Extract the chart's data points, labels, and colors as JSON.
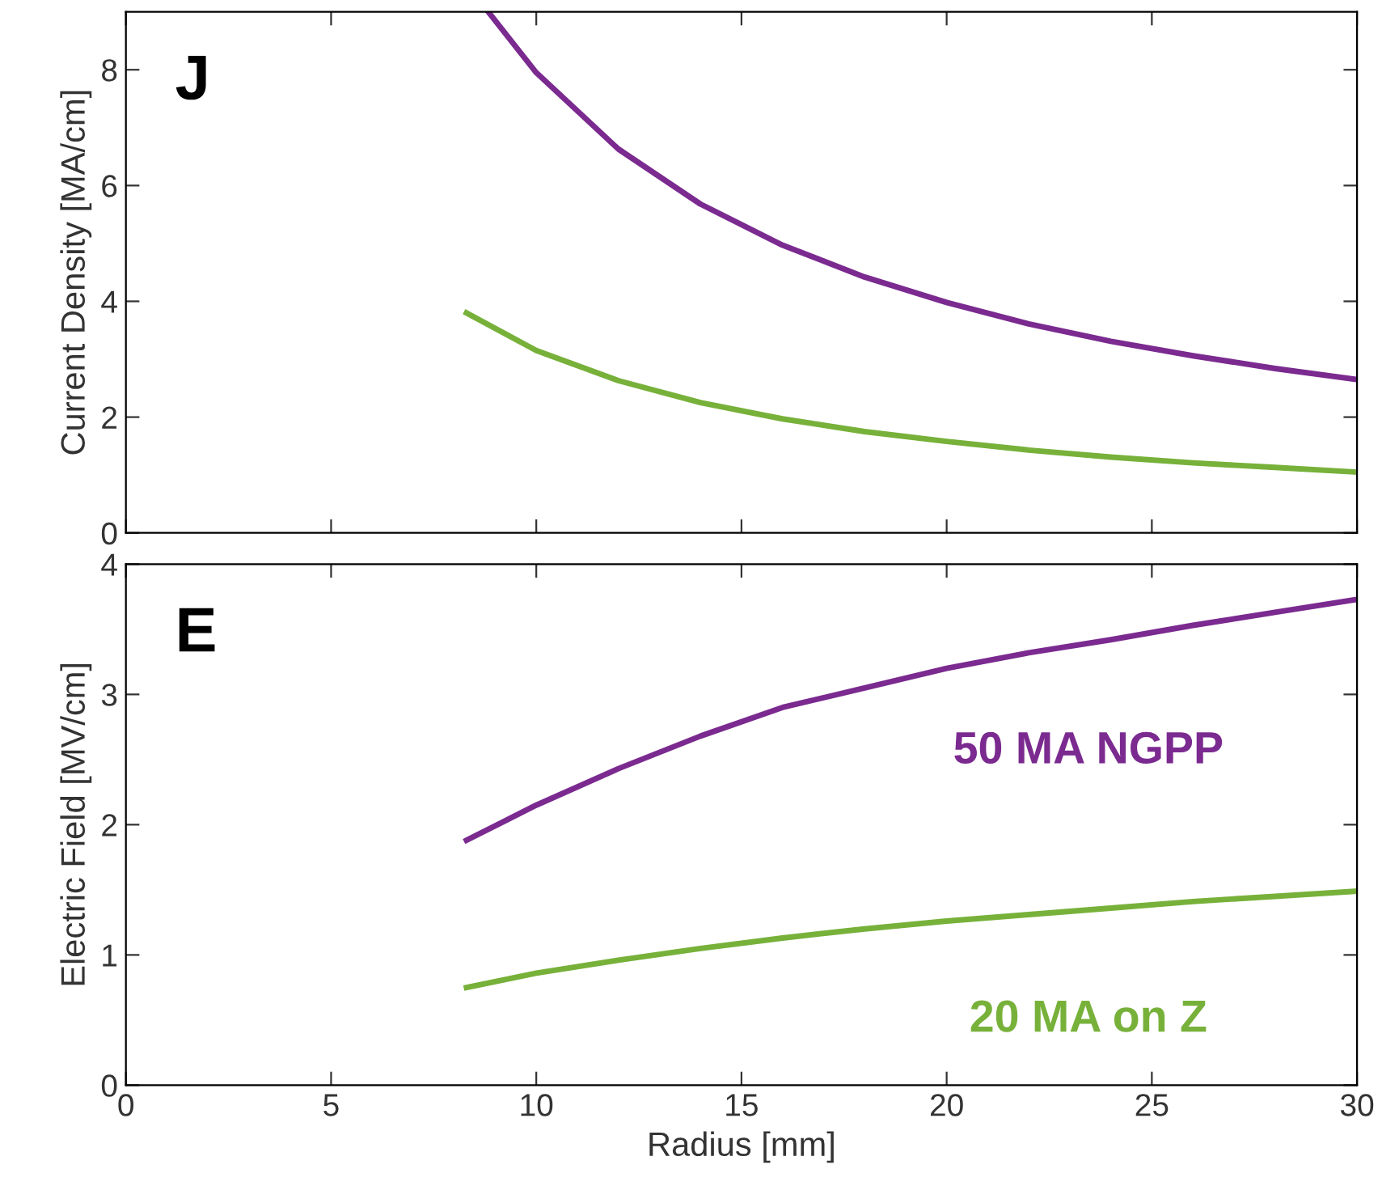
{
  "chart_data": [
    {
      "type": "line",
      "ylabel": "Current Density [MA/cm]",
      "annotations": [
        "J"
      ],
      "xlim": [
        0,
        30
      ],
      "xticks": [
        0,
        5,
        10,
        15,
        20,
        25,
        30
      ],
      "ylim": [
        0,
        9
      ],
      "yticks": [
        0,
        2,
        4,
        6,
        8
      ],
      "tick_labels": "y",
      "grid": false,
      "legend": false,
      "series": [
        {
          "color": "#7b2a90",
          "x": [
            8.83,
            10,
            12,
            14,
            16,
            18,
            20,
            22,
            24,
            26,
            28,
            30
          ],
          "values": [
            9.0,
            7.95,
            6.63,
            5.68,
            4.97,
            4.42,
            3.98,
            3.61,
            3.31,
            3.06,
            2.84,
            2.65
          ]
        },
        {
          "color": "#77b13a",
          "x": [
            8.3,
            10,
            12,
            14,
            16,
            18,
            20,
            22,
            24,
            26,
            28,
            30
          ],
          "values": [
            3.8,
            3.15,
            2.63,
            2.25,
            1.97,
            1.75,
            1.58,
            1.43,
            1.31,
            1.21,
            1.13,
            1.05
          ]
        }
      ]
    },
    {
      "type": "line",
      "xlabel": "Radius [mm]",
      "ylabel": "Electric Field [MV/cm]",
      "annotations": [
        "E"
      ],
      "xlim": [
        0,
        30
      ],
      "xticks": [
        0,
        5,
        10,
        15,
        20,
        25,
        30
      ],
      "ylim": [
        0,
        4
      ],
      "yticks": [
        0,
        1,
        2,
        3,
        4
      ],
      "grid": false,
      "legend": false,
      "series": [
        {
          "name": "50 MA NGPP",
          "color": "#7b2a90",
          "x": [
            8.3,
            10,
            12,
            14,
            16,
            18,
            20,
            22,
            24,
            26,
            28,
            30
          ],
          "values": [
            1.88,
            2.15,
            2.43,
            2.68,
            2.9,
            3.05,
            3.2,
            3.32,
            3.42,
            3.53,
            3.63,
            3.73
          ]
        },
        {
          "name": "20 MA on Z",
          "color": "#77b13a",
          "x": [
            8.3,
            10,
            12,
            14,
            16,
            18,
            20,
            22,
            24,
            26,
            28,
            30
          ],
          "values": [
            0.75,
            0.86,
            0.96,
            1.05,
            1.13,
            1.2,
            1.26,
            1.31,
            1.36,
            1.41,
            1.45,
            1.49
          ]
        }
      ]
    }
  ]
}
